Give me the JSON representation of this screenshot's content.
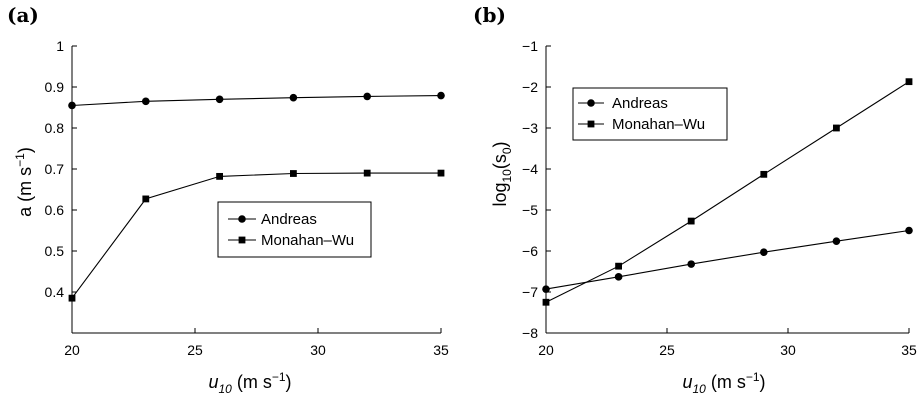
{
  "chart_data": [
    {
      "type": "line",
      "panel_label": "(a)",
      "xlabel": "u10 (m s−1)",
      "xlabel_parts": {
        "main": "u",
        "sub": "10",
        "rest": " (m s",
        "sup": "−1",
        "close": ")"
      },
      "ylabel": "a (m s−1)",
      "ylabel_parts": {
        "main": "a (m s",
        "sup": "−1",
        "close": ")"
      },
      "xlim": [
        20,
        35
      ],
      "ylim": [
        0.3,
        1.0
      ],
      "xticks": [
        20,
        25,
        30,
        35
      ],
      "xtick_labels": [
        "20",
        "25",
        "30",
        "35"
      ],
      "yticks": [
        0.4,
        0.5,
        0.6,
        0.7,
        0.8,
        0.9,
        1.0
      ],
      "ytick_labels": [
        "0.4",
        "0.5",
        "0.6",
        "0.7",
        "0.8",
        "0.9",
        "1"
      ],
      "legend_position": "center-right",
      "grid": false,
      "x": [
        20,
        23,
        26,
        29,
        32,
        35
      ],
      "series": [
        {
          "name": "Andreas",
          "marker": "circle",
          "values": [
            0.855,
            0.865,
            0.87,
            0.874,
            0.877,
            0.879
          ]
        },
        {
          "name": "Monahan–Wu",
          "marker": "square",
          "values": [
            0.385,
            0.627,
            0.682,
            0.689,
            0.69,
            0.69
          ]
        }
      ]
    },
    {
      "type": "line",
      "panel_label": "(b)",
      "xlabel": "u10 (m s−1)",
      "xlabel_parts": {
        "main": "u",
        "sub": "10",
        "rest": " (m s",
        "sup": "−1",
        "close": ")"
      },
      "ylabel": "log10(s0)",
      "ylabel_parts": {
        "main": "log",
        "sub1": "10",
        "mid": "(s",
        "sub2": "0",
        "close": ")"
      },
      "xlim": [
        20,
        35
      ],
      "ylim": [
        -8,
        -1
      ],
      "xticks": [
        20,
        25,
        30,
        35
      ],
      "xtick_labels": [
        "20",
        "25",
        "30",
        "35"
      ],
      "yticks": [
        -8,
        -7,
        -6,
        -5,
        -4,
        -3,
        -2,
        -1
      ],
      "ytick_labels": [
        "−8",
        "−7",
        "−6",
        "−5",
        "−4",
        "−3",
        "−2",
        "−1"
      ],
      "legend_position": "top-left",
      "grid": false,
      "x": [
        20,
        23,
        26,
        29,
        32,
        35
      ],
      "series": [
        {
          "name": "Andreas",
          "marker": "circle",
          "values": [
            -6.93,
            -6.63,
            -6.32,
            -6.03,
            -5.76,
            -5.5
          ]
        },
        {
          "name": "Monahan–Wu",
          "marker": "square",
          "values": [
            -7.25,
            -6.37,
            -5.27,
            -4.13,
            -3.0,
            -1.87
          ]
        }
      ]
    }
  ]
}
